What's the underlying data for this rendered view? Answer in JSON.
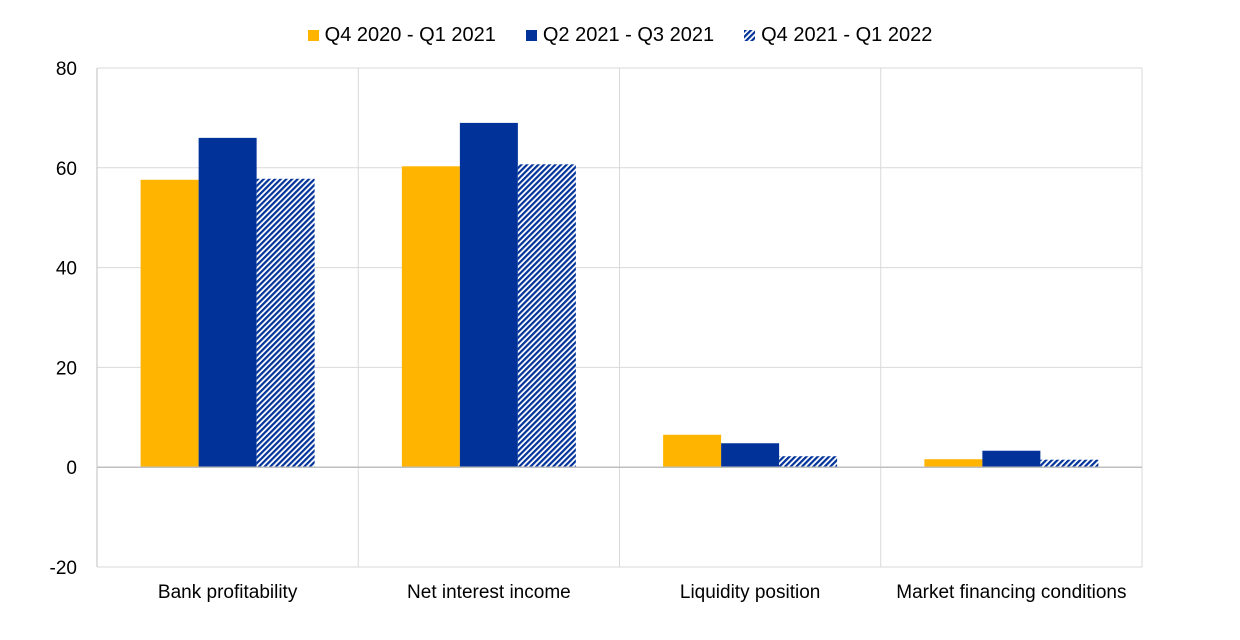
{
  "chart_data": {
    "type": "bar",
    "categories": [
      "Bank profitability",
      "Net interest income",
      "Liquidity position",
      "Market financing conditions"
    ],
    "series": [
      {
        "name": "Q4 2020 - Q1 2021",
        "values": [
          57.6,
          60.3,
          6.5,
          1.6
        ],
        "color": "#FFB400",
        "pattern": "solid"
      },
      {
        "name": "Q2 2021 - Q3 2021",
        "values": [
          66.0,
          69.0,
          4.8,
          3.3
        ],
        "color": "#003299",
        "pattern": "solid"
      },
      {
        "name": "Q4 2021 - Q1 2022",
        "values": [
          57.8,
          60.7,
          2.2,
          1.5
        ],
        "color": "#003299",
        "pattern": "hatched"
      }
    ],
    "ylim": [
      -20,
      80
    ],
    "yticks": [
      80,
      60,
      40,
      20,
      0,
      -20
    ],
    "grid": true,
    "legend_position": "top"
  }
}
